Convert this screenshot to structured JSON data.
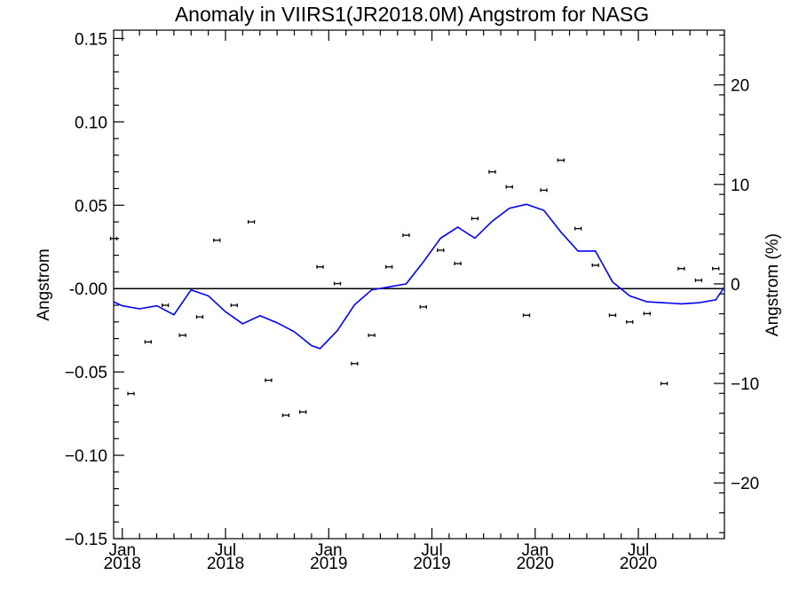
{
  "chart_data": {
    "type": "line",
    "title": "Anomaly in VIIRS1(JR2018.0M) Angstrom for NASG",
    "ylabel": "Angstrom",
    "ylabel_right": "Angstrom (%)",
    "ylim": [
      -0.15,
      0.155
    ],
    "ylim_right": [
      -25.6,
      25.5
    ],
    "xlim": [
      2017.958,
      2020.917
    ],
    "yticks": [
      {
        "value": -0.15,
        "label": "−0.15"
      },
      {
        "value": -0.1,
        "label": "−0.10"
      },
      {
        "value": -0.05,
        "label": "−0.05"
      },
      {
        "value": 0.0,
        "label": "-0.00"
      },
      {
        "value": 0.05,
        "label": "0.05"
      },
      {
        "value": 0.1,
        "label": "0.10"
      },
      {
        "value": 0.15,
        "label": "0.15"
      }
    ],
    "yticks_right": [
      {
        "value": -20,
        "label": "−20"
      },
      {
        "value": -10,
        "label": "−10"
      },
      {
        "value": 0,
        "label": "0"
      },
      {
        "value": 10,
        "label": "10"
      },
      {
        "value": 20,
        "label": "20"
      }
    ],
    "xticks": [
      {
        "value": 2018.0,
        "month": "Jan",
        "year": "2018"
      },
      {
        "value": 2018.5,
        "month": "Jul",
        "year": "2018"
      },
      {
        "value": 2019.0,
        "month": "Jan",
        "year": "2019"
      },
      {
        "value": 2019.5,
        "month": "Jul",
        "year": "2019"
      },
      {
        "value": 2020.0,
        "month": "Jan",
        "year": "2020"
      },
      {
        "value": 2020.5,
        "month": "Jul",
        "year": "2020"
      }
    ],
    "series": [
      {
        "kind": "points",
        "axis": "left",
        "color": "#000000",
        "x": [
          2017.958,
          2018.042,
          2018.125,
          2018.208,
          2018.292,
          2018.375,
          2018.458,
          2018.542,
          2018.625,
          2018.708,
          2018.792,
          2018.875,
          2018.958,
          2019.042,
          2019.125,
          2019.208,
          2019.292,
          2019.375,
          2019.458,
          2019.542,
          2019.625,
          2019.708,
          2019.792,
          2019.875,
          2019.958,
          2020.042,
          2020.125,
          2020.208,
          2020.292,
          2020.375,
          2020.458,
          2020.542,
          2020.625,
          2020.708,
          2020.792,
          2020.875
        ],
        "values": [
          0.03,
          -0.063,
          -0.032,
          -0.01,
          -0.028,
          -0.017,
          0.029,
          -0.01,
          0.04,
          -0.055,
          -0.076,
          -0.074,
          0.013,
          0.003,
          -0.045,
          -0.028,
          0.013,
          0.032,
          -0.011,
          0.023,
          0.015,
          0.042,
          0.07,
          0.061,
          -0.016,
          0.059,
          0.077,
          0.036,
          0.014,
          -0.016,
          -0.02,
          -0.015,
          -0.057,
          0.012,
          0.005,
          0.012
        ]
      },
      {
        "kind": "line",
        "axis": "right",
        "color": "#0000ff",
        "x": [
          2017.958,
          2018.0,
          2018.083,
          2018.167,
          2018.25,
          2018.333,
          2018.417,
          2018.5,
          2018.583,
          2018.667,
          2018.75,
          2018.833,
          2018.917,
          2018.958,
          2019.042,
          2019.125,
          2019.208,
          2019.292,
          2019.375,
          2019.458,
          2019.542,
          2019.625,
          2019.708,
          2019.792,
          2019.875,
          2019.958,
          2020.042,
          2020.125,
          2020.208,
          2020.292,
          2020.375,
          2020.458,
          2020.542,
          2020.625,
          2020.708,
          2020.792,
          2020.875,
          2020.917
        ],
        "values": [
          -1.8,
          -2.2,
          -2.5,
          -2.2,
          -3.1,
          -0.6,
          -1.2,
          -2.8,
          -4.0,
          -3.2,
          -3.9,
          -4.8,
          -6.2,
          -6.5,
          -4.7,
          -2.1,
          -0.6,
          -0.3,
          0.0,
          2.2,
          4.6,
          5.7,
          4.6,
          6.3,
          7.6,
          8.0,
          7.4,
          5.2,
          3.3,
          3.3,
          0.2,
          -1.2,
          -1.8,
          -1.9,
          -2.0,
          -1.9,
          -1.6,
          -0.3
        ]
      }
    ]
  }
}
